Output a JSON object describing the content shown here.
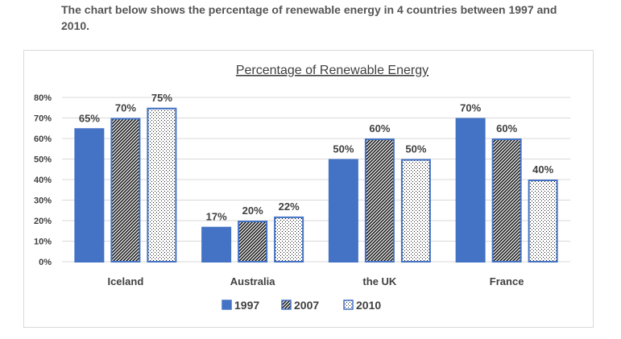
{
  "caption": "The chart below shows the percentage of renewable energy in 4 countries between 1997 and 2010.",
  "chart_data": {
    "type": "bar",
    "title": "Percentage of Renewable Energy",
    "categories": [
      "Iceland",
      "Australia",
      "the UK",
      "France"
    ],
    "series": [
      {
        "name": "1997",
        "values": [
          65,
          17,
          50,
          70
        ],
        "pattern": "solid"
      },
      {
        "name": "2007",
        "values": [
          70,
          20,
          60,
          60
        ],
        "pattern": "diagonal-stripes"
      },
      {
        "name": "2010",
        "values": [
          75,
          22,
          50,
          40
        ],
        "pattern": "dotted"
      }
    ],
    "data_labels": [
      [
        "65%",
        "17%",
        "50%",
        "70%"
      ],
      [
        "70%",
        "20%",
        "60%",
        "60%"
      ],
      [
        "75%",
        "22%",
        "50%",
        "40%"
      ]
    ],
    "yticks": [
      "0%",
      "10%",
      "20%",
      "30%",
      "40%",
      "50%",
      "60%",
      "70%",
      "80%"
    ],
    "ylim": [
      0,
      80
    ],
    "xlabel": "",
    "ylabel": "",
    "grid": true,
    "legend_position": "bottom"
  },
  "colors": {
    "bar_fill": "#4472c4",
    "bar_border": "#4472c4",
    "hatch": "#1a1a1a",
    "gridline": "#d9d9d9",
    "text": "#404040"
  }
}
